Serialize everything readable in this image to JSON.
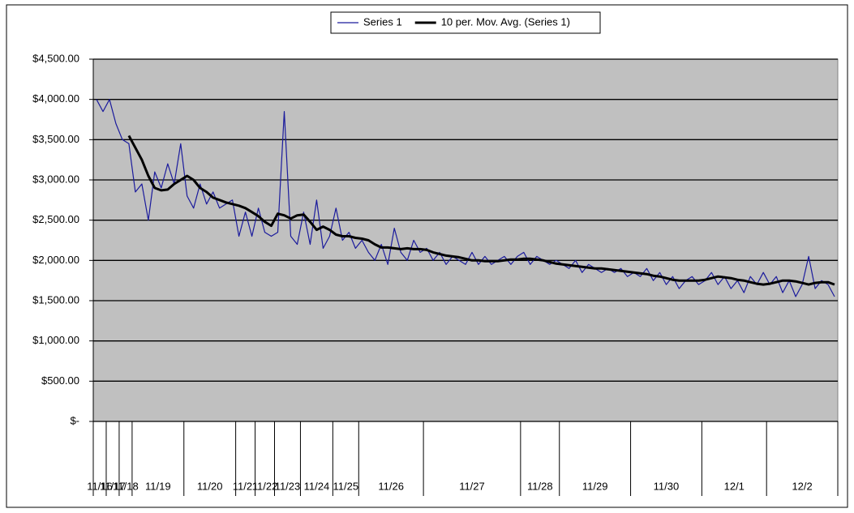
{
  "chart_data": {
    "type": "line",
    "categories": [
      "11/16",
      "11/16",
      "11/17",
      "11/17",
      "11/18",
      "11/18",
      "11/19",
      "11/19",
      "11/19",
      "11/19",
      "11/19",
      "11/19",
      "11/19",
      "11/19",
      "11/20",
      "11/20",
      "11/20",
      "11/20",
      "11/20",
      "11/20",
      "11/20",
      "11/20",
      "11/21",
      "11/21",
      "11/21",
      "11/22",
      "11/22",
      "11/22",
      "11/23",
      "11/23",
      "11/23",
      "11/23",
      "11/24",
      "11/24",
      "11/24",
      "11/24",
      "11/24",
      "11/25",
      "11/25",
      "11/25",
      "11/25",
      "11/26",
      "11/26",
      "11/26",
      "11/26",
      "11/26",
      "11/26",
      "11/26",
      "11/26",
      "11/26",
      "11/26",
      "11/27",
      "11/27",
      "11/27",
      "11/27",
      "11/27",
      "11/27",
      "11/27",
      "11/27",
      "11/27",
      "11/27",
      "11/27",
      "11/27",
      "11/27",
      "11/27",
      "11/27",
      "11/28",
      "11/28",
      "11/28",
      "11/28",
      "11/28",
      "11/28",
      "11/29",
      "11/29",
      "11/29",
      "11/29",
      "11/29",
      "11/29",
      "11/29",
      "11/29",
      "11/29",
      "11/29",
      "11/29",
      "11/30",
      "11/30",
      "11/30",
      "11/30",
      "11/30",
      "11/30",
      "11/30",
      "11/30",
      "11/30",
      "11/30",
      "11/30",
      "12/1",
      "12/1",
      "12/1",
      "12/1",
      "12/1",
      "12/1",
      "12/1",
      "12/1",
      "12/1",
      "12/1",
      "12/2",
      "12/2",
      "12/2",
      "12/2",
      "12/2",
      "12/2",
      "12/2",
      "12/2",
      "12/2",
      "12/2",
      "12/2"
    ],
    "series": [
      {
        "name": "Series 1",
        "color": "#1a1a9c",
        "values": [
          4000,
          3850,
          4000,
          3700,
          3500,
          3450,
          2850,
          2950,
          2500,
          3100,
          2900,
          3200,
          2950,
          3450,
          2800,
          2650,
          2950,
          2700,
          2850,
          2650,
          2700,
          2750,
          2300,
          2600,
          2300,
          2650,
          2350,
          2300,
          2350,
          3850,
          2300,
          2200,
          2600,
          2200,
          2750,
          2150,
          2300,
          2650,
          2250,
          2350,
          2150,
          2250,
          2100,
          2000,
          2200,
          1950,
          2400,
          2100,
          2000,
          2250,
          2100,
          2150,
          2000,
          2100,
          1950,
          2050,
          2000,
          1950,
          2100,
          1950,
          2050,
          1950,
          2000,
          2050,
          1950,
          2050,
          2100,
          1950,
          2050,
          2000,
          1950,
          2000,
          1950,
          1900,
          2000,
          1850,
          1950,
          1900,
          1850,
          1900,
          1850,
          1900,
          1800,
          1850,
          1800,
          1900,
          1750,
          1850,
          1700,
          1800,
          1650,
          1750,
          1800,
          1700,
          1750,
          1850,
          1700,
          1800,
          1650,
          1750,
          1600,
          1800,
          1700,
          1850,
          1700,
          1800,
          1600,
          1750,
          1550,
          1700,
          2050,
          1650,
          1750,
          1700,
          1550
        ]
      },
      {
        "name": "10 per. Mov. Avg. (Series 1)",
        "color": "#000000",
        "values": [
          null,
          null,
          null,
          null,
          null,
          3550,
          3400,
          3250,
          3050,
          2900,
          2870,
          2880,
          2950,
          3000,
          3050,
          3000,
          2900,
          2850,
          2780,
          2750,
          2720,
          2700,
          2680,
          2650,
          2600,
          2550,
          2480,
          2430,
          2580,
          2560,
          2520,
          2560,
          2570,
          2480,
          2380,
          2420,
          2380,
          2320,
          2300,
          2300,
          2280,
          2270,
          2250,
          2200,
          2160,
          2160,
          2150,
          2140,
          2150,
          2140,
          2140,
          2130,
          2100,
          2080,
          2060,
          2050,
          2040,
          2020,
          2000,
          2000,
          1990,
          1990,
          1990,
          2000,
          2010,
          2010,
          2020,
          2020,
          2010,
          2000,
          1980,
          1960,
          1950,
          1940,
          1930,
          1920,
          1910,
          1900,
          1900,
          1890,
          1880,
          1870,
          1860,
          1850,
          1840,
          1830,
          1810,
          1800,
          1780,
          1760,
          1750,
          1750,
          1750,
          1750,
          1760,
          1780,
          1800,
          1790,
          1780,
          1760,
          1750,
          1730,
          1710,
          1700,
          1710,
          1730,
          1750,
          1750,
          1740,
          1720,
          1700,
          1720,
          1730,
          1730,
          1700
        ]
      }
    ],
    "ylim": [
      0,
      4500
    ],
    "yticks": [
      {
        "value": 0,
        "label": "$-"
      },
      {
        "value": 500,
        "label": "$500.00"
      },
      {
        "value": 1000,
        "label": "$1,000.00"
      },
      {
        "value": 1500,
        "label": "$1,500.00"
      },
      {
        "value": 2000,
        "label": "$2,000.00"
      },
      {
        "value": 2500,
        "label": "$2,500.00"
      },
      {
        "value": 3000,
        "label": "$3,000.00"
      },
      {
        "value": 3500,
        "label": "$3,500.00"
      },
      {
        "value": 4000,
        "label": "$4,000.00"
      },
      {
        "value": 4500,
        "label": "$4,500.00"
      }
    ],
    "grid": true
  }
}
